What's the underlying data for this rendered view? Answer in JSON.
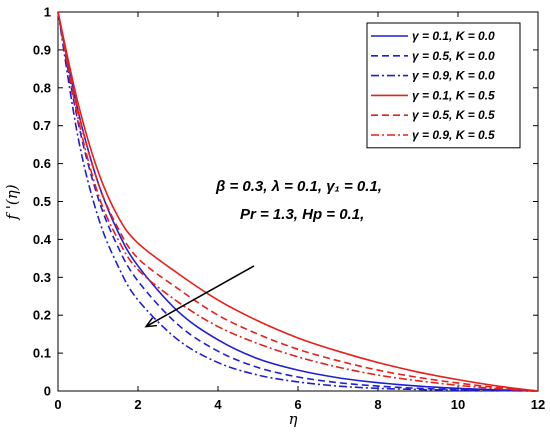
{
  "chart_data": {
    "type": "line",
    "xlabel": "η",
    "ylabel": "f '(η)",
    "xlim": [
      0,
      12
    ],
    "ylim": [
      0,
      1
    ],
    "xticks": [
      "0",
      "2",
      "4",
      "6",
      "8",
      "10",
      "12"
    ],
    "yticks": [
      "0",
      "0.1",
      "0.2",
      "0.3",
      "0.4",
      "0.5",
      "0.6",
      "0.7",
      "0.8",
      "0.9",
      "1"
    ],
    "grid": false,
    "legend_position": "top-right",
    "annotation_lines": [
      "β = 0.3, λ = 0.1, γ₁ = 0.1,",
      "Pr = 1.3, Hp = 0.1,"
    ],
    "arrow": {
      "from": [
        4.9,
        0.33
      ],
      "to": [
        2.2,
        0.17
      ]
    },
    "x": [
      0,
      0.5,
      1,
      1.5,
      2,
      3,
      4,
      5,
      6,
      7,
      8,
      9,
      10,
      11,
      12
    ],
    "series": [
      {
        "name": "γ = 0.1, K = 0.0",
        "color": "#1f1fd6",
        "dash": "solid",
        "values": [
          1.0,
          0.74,
          0.55,
          0.42,
          0.33,
          0.21,
          0.135,
          0.085,
          0.055,
          0.035,
          0.022,
          0.013,
          0.007,
          0.003,
          0.0
        ]
      },
      {
        "name": "γ = 0.5, K = 0.0",
        "color": "#1f1fd6",
        "dash": "dashed",
        "values": [
          1.0,
          0.71,
          0.51,
          0.38,
          0.29,
          0.175,
          0.105,
          0.062,
          0.037,
          0.022,
          0.013,
          0.007,
          0.004,
          0.002,
          0.0
        ]
      },
      {
        "name": "γ = 0.9, K = 0.0",
        "color": "#1f1fd6",
        "dash": "dashdot",
        "values": [
          1.0,
          0.67,
          0.46,
          0.33,
          0.24,
          0.135,
          0.075,
          0.042,
          0.024,
          0.013,
          0.007,
          0.004,
          0.002,
          0.001,
          0.0
        ]
      },
      {
        "name": "γ = 0.1, K = 0.5",
        "color": "#e8201b",
        "dash": "solid",
        "values": [
          1.0,
          0.76,
          0.58,
          0.46,
          0.39,
          0.31,
          0.24,
          0.185,
          0.14,
          0.105,
          0.075,
          0.05,
          0.03,
          0.013,
          0.0
        ]
      },
      {
        "name": "γ = 0.5, K = 0.5",
        "color": "#e8201b",
        "dash": "dashed",
        "values": [
          1.0,
          0.74,
          0.55,
          0.43,
          0.35,
          0.27,
          0.2,
          0.15,
          0.11,
          0.08,
          0.055,
          0.036,
          0.021,
          0.009,
          0.0
        ]
      },
      {
        "name": "γ = 0.9, K = 0.5",
        "color": "#e8201b",
        "dash": "dashdot",
        "values": [
          1.0,
          0.72,
          0.52,
          0.4,
          0.32,
          0.235,
          0.17,
          0.125,
          0.09,
          0.063,
          0.042,
          0.027,
          0.015,
          0.006,
          0.0
        ]
      }
    ]
  }
}
